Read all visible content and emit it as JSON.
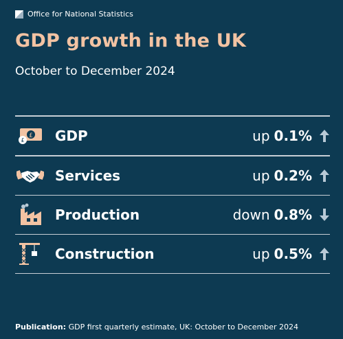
{
  "brand": {
    "name": "Office for National Statistics",
    "logo_icon": "ons-logo-icon"
  },
  "title": "GDP growth in the UK",
  "subtitle": "October to December 2024",
  "colors": {
    "background": "#0d3a52",
    "title": "#f2c3a3",
    "icon_fill": "#f2c3a3",
    "arrow": "#b8c9d6",
    "rule": "#c8cfd6"
  },
  "rows": [
    {
      "label": "GDP",
      "direction": "up",
      "value": "0.1%",
      "icon": "banknote-icon",
      "arrow": "arrow-up-icon"
    },
    {
      "label": "Services",
      "direction": "up",
      "value": "0.2%",
      "icon": "handshake-icon",
      "arrow": "arrow-up-icon"
    },
    {
      "label": "Production",
      "direction": "down",
      "value": "0.8%",
      "icon": "factory-icon",
      "arrow": "arrow-down-icon"
    },
    {
      "label": "Construction",
      "direction": "up",
      "value": "0.5%",
      "icon": "crane-icon",
      "arrow": "arrow-up-icon"
    }
  ],
  "footer": {
    "label": "Publication:",
    "text": "GDP first quarterly estimate, UK: October to December 2024"
  }
}
